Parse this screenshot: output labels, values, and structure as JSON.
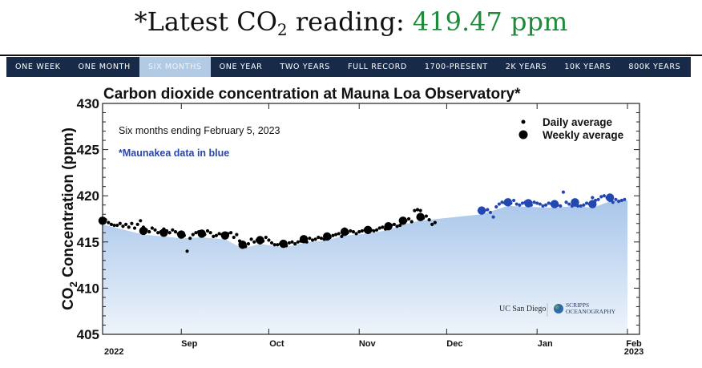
{
  "headline": {
    "prefix": "*Latest CO",
    "subscript": "2",
    "middle": " reading: ",
    "value": "419.47 ppm",
    "value_color": "#1e8a3a"
  },
  "nav": {
    "tabs": [
      {
        "label": "ONE WEEK",
        "active": false
      },
      {
        "label": "ONE MONTH",
        "active": false
      },
      {
        "label": "SIX MONTHS",
        "active": true
      },
      {
        "label": "ONE YEAR",
        "active": false
      },
      {
        "label": "TWO YEARS",
        "active": false
      },
      {
        "label": "FULL RECORD",
        "active": false
      },
      {
        "label": "1700-PRESENT",
        "active": false
      },
      {
        "label": "2K YEARS",
        "active": false
      },
      {
        "label": "10K YEARS",
        "active": false
      },
      {
        "label": "800K YEARS",
        "active": false
      }
    ],
    "bg_color": "#172a48",
    "active_color": "#b3cae4"
  },
  "chart": {
    "title": "Carbon dioxide concentration at Mauna Loa Observatory*",
    "subtitle": "Six months ending February 5, 2023",
    "note": "*Maunakea data in blue",
    "ylabel_prefix": "CO",
    "ylabel_sub": "2",
    "ylabel_suffix": " Concentration (ppm)",
    "legend": {
      "daily": "Daily average",
      "weekly": "Weekly average"
    },
    "logos": {
      "ucsd": "UC San Diego",
      "scripps_line1": "SCRIPPS",
      "scripps_small": "INSTITUTION OF",
      "scripps_line2": "OCEANOGRAPHY"
    },
    "year_start": "2022",
    "year_end": "2023"
  },
  "chart_data": {
    "type": "scatter",
    "title": "Carbon dioxide concentration at Mauna Loa Observatory*",
    "subtitle": "Six months ending February 5, 2023",
    "xlabel": "",
    "ylabel": "CO2 Concentration (ppm)",
    "ylim": [
      405,
      430
    ],
    "yticks": [
      405,
      410,
      415,
      420,
      425,
      430
    ],
    "xlim_days": [
      0,
      184
    ],
    "x_origin": "2022-08-05",
    "xticks": [
      {
        "label": "Sep",
        "day": 27
      },
      {
        "label": "Oct",
        "day": 57
      },
      {
        "label": "Nov",
        "day": 88
      },
      {
        "label": "Dec",
        "day": 118
      },
      {
        "label": "Jan",
        "day": 149
      },
      {
        "label": "Feb",
        "day": 180
      }
    ],
    "grid": false,
    "legend_position": "upper right",
    "annotations": [
      "Six months ending February 5, 2023",
      "*Maunakea data in blue"
    ],
    "series": [
      {
        "name": "Daily average",
        "marker": "small",
        "color": "#000000",
        "points": [
          [
            1,
            417.4
          ],
          [
            2,
            417.1
          ],
          [
            3,
            416.9
          ],
          [
            4,
            416.8
          ],
          [
            5,
            416.8
          ],
          [
            6,
            417.0
          ],
          [
            7,
            416.7
          ],
          [
            8,
            416.9
          ],
          [
            9,
            416.6
          ],
          [
            10,
            417.0
          ],
          [
            11,
            416.5
          ],
          [
            12,
            416.9
          ],
          [
            13,
            417.3
          ],
          [
            14,
            416.6
          ],
          [
            15,
            416.3
          ],
          [
            16,
            416.1
          ],
          [
            17,
            416.5
          ],
          [
            18,
            416.3
          ],
          [
            19,
            416.0
          ],
          [
            20,
            416.1
          ],
          [
            21,
            416.4
          ],
          [
            22,
            416.2
          ],
          [
            23,
            416.0
          ],
          [
            24,
            416.3
          ],
          [
            25,
            416.1
          ],
          [
            26,
            415.9
          ],
          [
            27,
            415.8
          ],
          [
            28,
            415.7
          ],
          [
            29,
            414.0
          ],
          [
            30,
            415.4
          ],
          [
            31,
            415.8
          ],
          [
            32,
            416.0
          ],
          [
            33,
            416.1
          ],
          [
            34,
            415.9
          ],
          [
            35,
            415.8
          ],
          [
            36,
            416.2
          ],
          [
            37,
            416.0
          ],
          [
            38,
            415.6
          ],
          [
            39,
            415.7
          ],
          [
            40,
            415.9
          ],
          [
            41,
            415.8
          ],
          [
            42,
            415.6
          ],
          [
            43,
            415.9
          ],
          [
            44,
            416.0
          ],
          [
            45,
            415.5
          ],
          [
            46,
            415.8
          ],
          [
            47,
            415.1
          ],
          [
            48,
            414.9
          ],
          [
            49,
            414.5
          ],
          [
            50,
            414.8
          ],
          [
            51,
            415.3
          ],
          [
            52,
            415.0
          ],
          [
            53,
            415.2
          ],
          [
            54,
            414.9
          ],
          [
            55,
            415.1
          ],
          [
            56,
            415.5
          ],
          [
            57,
            415.2
          ],
          [
            58,
            414.9
          ],
          [
            59,
            414.7
          ],
          [
            60,
            414.7
          ],
          [
            61,
            414.8
          ],
          [
            62,
            414.9
          ],
          [
            63,
            414.6
          ],
          [
            64,
            414.9
          ],
          [
            65,
            415.0
          ],
          [
            66,
            414.8
          ],
          [
            67,
            415.0
          ],
          [
            68,
            415.1
          ],
          [
            69,
            415.3
          ],
          [
            70,
            415.0
          ],
          [
            71,
            415.4
          ],
          [
            72,
            415.2
          ],
          [
            73,
            415.3
          ],
          [
            74,
            415.5
          ],
          [
            75,
            415.4
          ],
          [
            76,
            415.3
          ],
          [
            77,
            415.6
          ],
          [
            78,
            415.5
          ],
          [
            79,
            415.7
          ],
          [
            80,
            415.8
          ],
          [
            81,
            415.9
          ],
          [
            82,
            415.6
          ],
          [
            83,
            416.4
          ],
          [
            84,
            416.0
          ],
          [
            85,
            416.2
          ],
          [
            86,
            416.1
          ],
          [
            87,
            415.9
          ],
          [
            88,
            416.1
          ],
          [
            89,
            416.2
          ],
          [
            90,
            416.3
          ],
          [
            91,
            416.4
          ],
          [
            92,
            416.3
          ],
          [
            93,
            416.2
          ],
          [
            94,
            416.3
          ],
          [
            95,
            416.5
          ],
          [
            96,
            416.6
          ],
          [
            97,
            416.4
          ],
          [
            98,
            416.7
          ],
          [
            99,
            416.8
          ],
          [
            100,
            416.9
          ],
          [
            101,
            416.7
          ],
          [
            102,
            416.8
          ],
          [
            103,
            417.2
          ],
          [
            104,
            417.3
          ],
          [
            105,
            417.5
          ],
          [
            106,
            417.2
          ],
          [
            107,
            418.4
          ],
          [
            108,
            418.5
          ],
          [
            109,
            418.4
          ],
          [
            110,
            417.6
          ],
          [
            111,
            417.8
          ],
          [
            112,
            417.4
          ],
          [
            113,
            416.9
          ],
          [
            114,
            417.1
          ]
        ]
      },
      {
        "name": "Weekly average",
        "marker": "large",
        "color": "#000000",
        "points": [
          [
            0,
            417.3
          ],
          [
            14,
            416.2
          ],
          [
            21,
            416.0
          ],
          [
            27,
            415.8
          ],
          [
            34,
            415.9
          ],
          [
            42,
            415.7
          ],
          [
            48,
            414.7
          ],
          [
            54,
            415.2
          ],
          [
            62,
            414.8
          ],
          [
            69,
            415.3
          ],
          [
            77,
            415.6
          ],
          [
            83,
            416.1
          ],
          [
            91,
            416.3
          ],
          [
            98,
            416.7
          ],
          [
            103,
            417.3
          ],
          [
            109,
            417.7
          ]
        ]
      },
      {
        "name": "Maunakea daily average",
        "marker": "small",
        "color": "#2347b0",
        "points": [
          [
            130,
            418.6
          ],
          [
            131,
            418.4
          ],
          [
            132,
            418.5
          ],
          [
            133,
            418.2
          ],
          [
            134,
            417.7
          ],
          [
            135,
            418.8
          ],
          [
            136,
            419.1
          ],
          [
            137,
            419.3
          ],
          [
            138,
            419.2
          ],
          [
            139,
            419.4
          ],
          [
            140,
            419.2
          ],
          [
            141,
            419.5
          ],
          [
            142,
            419.1
          ],
          [
            143,
            419.0
          ],
          [
            144,
            419.2
          ],
          [
            145,
            419.3
          ],
          [
            146,
            419.1
          ],
          [
            147,
            419.0
          ],
          [
            148,
            419.3
          ],
          [
            149,
            419.2
          ],
          [
            150,
            419.1
          ],
          [
            151,
            418.9
          ],
          [
            152,
            419.0
          ],
          [
            153,
            419.2
          ],
          [
            154,
            419.1
          ],
          [
            155,
            418.9
          ],
          [
            156,
            419.0
          ],
          [
            157,
            418.9
          ],
          [
            158,
            420.4
          ],
          [
            159,
            419.3
          ],
          [
            160,
            419.1
          ],
          [
            161,
            418.9
          ],
          [
            162,
            419.0
          ],
          [
            163,
            418.9
          ],
          [
            164,
            418.9
          ],
          [
            165,
            419.0
          ],
          [
            166,
            419.2
          ],
          [
            167,
            419.1
          ],
          [
            168,
            419.8
          ],
          [
            169,
            419.5
          ],
          [
            170,
            419.6
          ],
          [
            171,
            419.9
          ],
          [
            172,
            420.0
          ],
          [
            173,
            419.8
          ],
          [
            174,
            419.5
          ],
          [
            175,
            419.3
          ],
          [
            176,
            419.6
          ],
          [
            177,
            419.4
          ],
          [
            178,
            419.5
          ],
          [
            179,
            419.6
          ]
        ]
      },
      {
        "name": "Maunakea weekly average",
        "marker": "large",
        "color": "#2347b0",
        "points": [
          [
            130,
            418.4
          ],
          [
            139,
            419.3
          ],
          [
            146,
            419.2
          ],
          [
            155,
            419.1
          ],
          [
            162,
            419.3
          ],
          [
            168,
            419.1
          ],
          [
            174,
            419.8
          ]
        ]
      }
    ],
    "fill": {
      "top_color": "#a9c6ea",
      "bottom_color": "#eef4fb"
    }
  }
}
